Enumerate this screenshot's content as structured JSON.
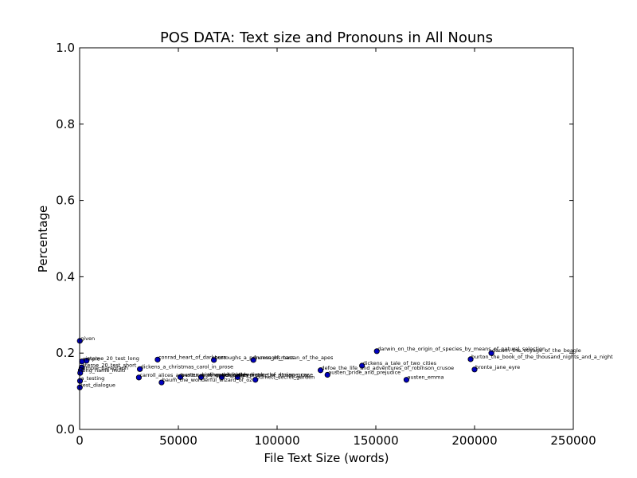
{
  "chart_data": {
    "type": "scatter",
    "title": "POS DATA: Text size and Pronouns in All Nouns",
    "xlabel": "File Text Size (words)",
    "ylabel": "Percentage",
    "xlim": [
      0,
      250000
    ],
    "ylim": [
      0.0,
      1.0
    ],
    "xticks": [
      0,
      50000,
      100000,
      150000,
      200000,
      250000
    ],
    "xtick_labels": [
      "0",
      "50000",
      "100000",
      "150000",
      "200000",
      "250000"
    ],
    "yticks": [
      0.0,
      0.2,
      0.4,
      0.6,
      0.8,
      1.0
    ],
    "ytick_labels": [
      "0.0",
      "0.2",
      "0.4",
      "0.6",
      "0.8",
      "1.0"
    ],
    "grid": false,
    "marker_color": "#0000bf",
    "points": [
      {
        "label": "given",
        "x": 100,
        "y": 0.232
      },
      {
        "label": "sterne_20_test_long",
        "x": 3500,
        "y": 0.18
      },
      {
        "label": "simple",
        "x": 1200,
        "y": 0.178
      },
      {
        "label": "sterne_20_test_short",
        "x": 1000,
        "y": 0.162
      },
      {
        "label": "simple_paragraph",
        "x": 600,
        "y": 0.155
      },
      {
        "label": "long_name_multi",
        "x": 300,
        "y": 0.148
      },
      {
        "label": "a_testing",
        "x": 200,
        "y": 0.127
      },
      {
        "label": "test_dialogue",
        "x": 100,
        "y": 0.11
      },
      {
        "label": "conrad_heart_of_darkness",
        "x": 39500,
        "y": 0.183
      },
      {
        "label": "dickens_a_christmas_carol_in_prose",
        "x": 30500,
        "y": 0.158
      },
      {
        "label": "carroll_alices_adventures_in_wonderland",
        "x": 30000,
        "y": 0.136
      },
      {
        "label": "baum_the_wonderful_wizard_of_oz",
        "x": 41500,
        "y": 0.123
      },
      {
        "label": "austen_northanger_abbey",
        "x": 51000,
        "y": 0.137
      },
      {
        "label": "kipling_the_jungle_book",
        "x": 61500,
        "y": 0.137
      },
      {
        "label": "wilde_the_picture_of_dorian_gray",
        "x": 72000,
        "y": 0.137
      },
      {
        "label": "burroughs_a_princess_of_mars",
        "x": 68000,
        "y": 0.182
      },
      {
        "label": "burroughs_tarzan_of_the_apes",
        "x": 88000,
        "y": 0.182
      },
      {
        "label": "stevenson_the_strange_case",
        "x": 80000,
        "y": 0.137
      },
      {
        "label": "burnett_secret_garden",
        "x": 89000,
        "y": 0.13
      },
      {
        "label": "defoe_the_life_and_adventures_of_robinson_crusoe",
        "x": 122000,
        "y": 0.155
      },
      {
        "label": "austen_pride_and_prejudice",
        "x": 125500,
        "y": 0.143
      },
      {
        "label": "dickens_a_tale_of_two_cities",
        "x": 143000,
        "y": 0.167
      },
      {
        "label": "darwin_on_the_origin_of_species_by_means_of_natural_selection",
        "x": 150500,
        "y": 0.205
      },
      {
        "label": "austen_emma",
        "x": 165500,
        "y": 0.13
      },
      {
        "label": "burton_the_book_of_the_thousand_nights_and_a_night",
        "x": 198000,
        "y": 0.184
      },
      {
        "label": "bronte_jane_eyre",
        "x": 200000,
        "y": 0.157
      },
      {
        "label": "darwin_the_voyage_of_the_beagle",
        "x": 208500,
        "y": 0.2
      }
    ]
  }
}
